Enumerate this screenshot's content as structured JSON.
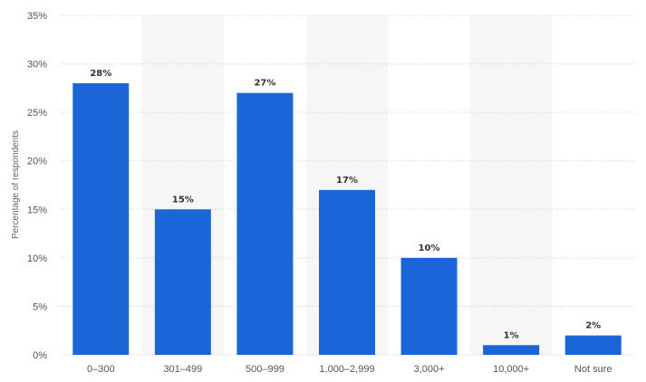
{
  "chart_data": {
    "type": "bar",
    "categories": [
      "0–300",
      "301–499",
      "500–999",
      "1,000–2,999",
      "3,000+",
      "10,000+",
      "Not sure"
    ],
    "values": [
      28,
      15,
      27,
      17,
      10,
      1,
      2
    ],
    "data_labels": [
      "28%",
      "15%",
      "27%",
      "17%",
      "10%",
      "1%",
      "2%"
    ],
    "ylabel": "Percentage of respondents",
    "ylim": [
      0,
      35
    ],
    "yticks": [
      0,
      5,
      10,
      15,
      20,
      25,
      30,
      35
    ],
    "ytick_labels": [
      "0%",
      "5%",
      "10%",
      "15%",
      "20%",
      "25%",
      "30%",
      "35%"
    ],
    "grid": true,
    "bar_color": "#1a66d8",
    "band_color": "#f6f6f6"
  }
}
